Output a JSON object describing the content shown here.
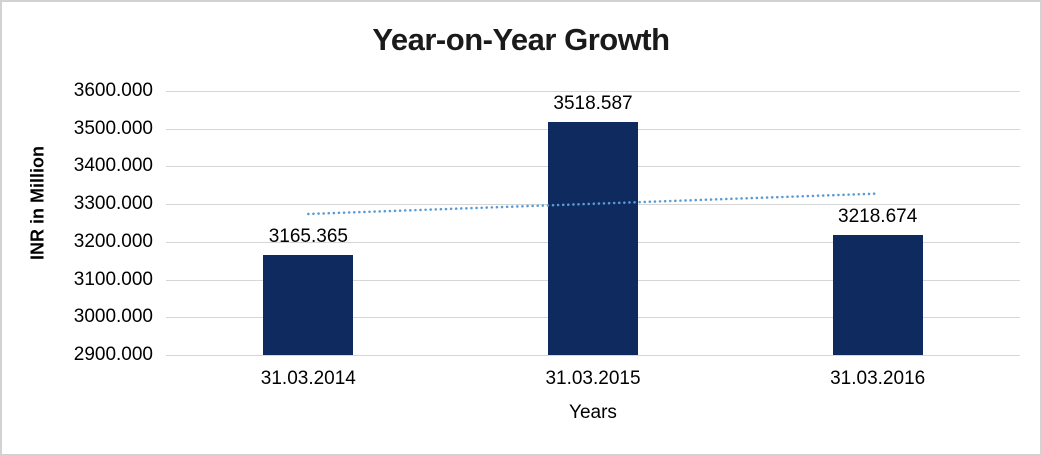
{
  "chart_data": {
    "type": "bar",
    "title": "Year-on-Year Growth",
    "categories": [
      "31.03.2014",
      "31.03.2015",
      "31.03.2016"
    ],
    "values": [
      3165.365,
      3518.587,
      3218.674
    ],
    "data_labels": [
      "3165.365",
      "3518.587",
      "3218.674"
    ],
    "xlabel": "Years",
    "ylabel": "INR in Million",
    "ylim": [
      2900,
      3600
    ],
    "ytick_step": 100,
    "ytick_labels": [
      "3600.000",
      "3500.000",
      "3400.000",
      "3300.000",
      "3200.000",
      "3100.000",
      "3000.000",
      "2900.000"
    ],
    "grid": true,
    "legend": "none",
    "bar_color": "#0e2a5e",
    "gridline_color": "#d6d6d6",
    "trendline": {
      "type": "linear",
      "style": "dotted",
      "color": "#5b9bd5",
      "value_start": 3274,
      "value_end": 3328
    }
  }
}
